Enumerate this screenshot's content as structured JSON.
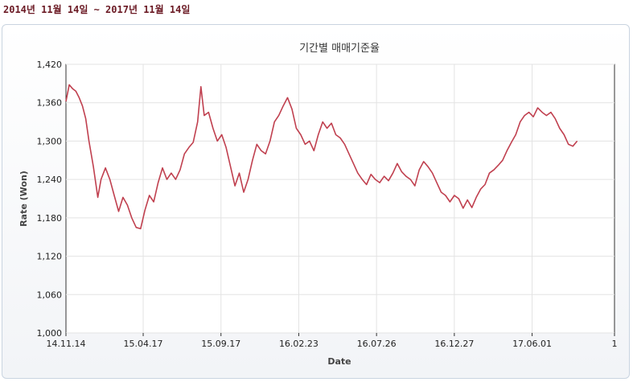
{
  "header": {
    "range_text": "2014년 11월 14일 ~ 2017년 11월 14일"
  },
  "chart_data": {
    "type": "line",
    "title": "기간별 매매기준율",
    "xlabel": "Date",
    "ylabel": "Rate (Won)",
    "ylim": [
      1000,
      1420
    ],
    "yticks": [
      "1,000",
      "1,060",
      "1,120",
      "1,180",
      "1,240",
      "1,300",
      "1,360",
      "1,420"
    ],
    "ytick_values": [
      1000,
      1060,
      1120,
      1180,
      1240,
      1300,
      1360,
      1420
    ],
    "xticks": [
      "14.11.14",
      "15.04.17",
      "15.09.17",
      "16.02.23",
      "16.07.26",
      "16.12.27",
      "17.06.01",
      "1"
    ],
    "xtick_positions": [
      0,
      0.1408,
      0.2826,
      0.4244,
      0.5662,
      0.708,
      0.8498,
      1.0
    ],
    "grid": true,
    "line_color": "#c0404f",
    "series": [
      {
        "name": "",
        "points": [
          [
            0.0,
            1362
          ],
          [
            0.006,
            1388
          ],
          [
            0.012,
            1382
          ],
          [
            0.018,
            1378
          ],
          [
            0.024,
            1368
          ],
          [
            0.03,
            1355
          ],
          [
            0.036,
            1335
          ],
          [
            0.042,
            1300
          ],
          [
            0.05,
            1260
          ],
          [
            0.058,
            1212
          ],
          [
            0.064,
            1240
          ],
          [
            0.072,
            1258
          ],
          [
            0.08,
            1240
          ],
          [
            0.088,
            1215
          ],
          [
            0.096,
            1190
          ],
          [
            0.104,
            1212
          ],
          [
            0.112,
            1200
          ],
          [
            0.12,
            1180
          ],
          [
            0.128,
            1165
          ],
          [
            0.136,
            1163
          ],
          [
            0.144,
            1192
          ],
          [
            0.152,
            1215
          ],
          [
            0.16,
            1205
          ],
          [
            0.168,
            1235
          ],
          [
            0.176,
            1258
          ],
          [
            0.184,
            1240
          ],
          [
            0.192,
            1250
          ],
          [
            0.2,
            1240
          ],
          [
            0.208,
            1255
          ],
          [
            0.216,
            1280
          ],
          [
            0.224,
            1290
          ],
          [
            0.232,
            1298
          ],
          [
            0.24,
            1330
          ],
          [
            0.246,
            1385
          ],
          [
            0.252,
            1340
          ],
          [
            0.26,
            1345
          ],
          [
            0.268,
            1320
          ],
          [
            0.276,
            1300
          ],
          [
            0.284,
            1310
          ],
          [
            0.292,
            1290
          ],
          [
            0.3,
            1260
          ],
          [
            0.308,
            1230
          ],
          [
            0.316,
            1250
          ],
          [
            0.324,
            1220
          ],
          [
            0.332,
            1240
          ],
          [
            0.34,
            1270
          ],
          [
            0.348,
            1295
          ],
          [
            0.356,
            1285
          ],
          [
            0.364,
            1280
          ],
          [
            0.372,
            1300
          ],
          [
            0.38,
            1330
          ],
          [
            0.388,
            1340
          ],
          [
            0.396,
            1355
          ],
          [
            0.404,
            1368
          ],
          [
            0.412,
            1350
          ],
          [
            0.42,
            1320
          ],
          [
            0.428,
            1310
          ],
          [
            0.436,
            1295
          ],
          [
            0.444,
            1300
          ],
          [
            0.452,
            1285
          ],
          [
            0.46,
            1310
          ],
          [
            0.468,
            1330
          ],
          [
            0.476,
            1320
          ],
          [
            0.484,
            1328
          ],
          [
            0.492,
            1310
          ],
          [
            0.5,
            1305
          ],
          [
            0.508,
            1295
          ],
          [
            0.516,
            1280
          ],
          [
            0.524,
            1265
          ],
          [
            0.532,
            1250
          ],
          [
            0.54,
            1240
          ],
          [
            0.548,
            1232
          ],
          [
            0.556,
            1248
          ],
          [
            0.564,
            1240
          ],
          [
            0.572,
            1235
          ],
          [
            0.58,
            1245
          ],
          [
            0.588,
            1238
          ],
          [
            0.596,
            1250
          ],
          [
            0.604,
            1265
          ],
          [
            0.612,
            1252
          ],
          [
            0.62,
            1245
          ],
          [
            0.628,
            1240
          ],
          [
            0.636,
            1230
          ],
          [
            0.644,
            1255
          ],
          [
            0.652,
            1268
          ],
          [
            0.66,
            1260
          ],
          [
            0.668,
            1250
          ],
          [
            0.676,
            1235
          ],
          [
            0.684,
            1220
          ],
          [
            0.692,
            1215
          ],
          [
            0.7,
            1205
          ],
          [
            0.708,
            1215
          ],
          [
            0.716,
            1210
          ],
          [
            0.724,
            1195
          ],
          [
            0.732,
            1208
          ],
          [
            0.74,
            1196
          ],
          [
            0.748,
            1212
          ],
          [
            0.756,
            1225
          ],
          [
            0.764,
            1232
          ],
          [
            0.772,
            1250
          ],
          [
            0.78,
            1255
          ],
          [
            0.788,
            1262
          ],
          [
            0.796,
            1270
          ],
          [
            0.804,
            1285
          ],
          [
            0.812,
            1298
          ],
          [
            0.82,
            1310
          ],
          [
            0.828,
            1330
          ],
          [
            0.836,
            1340
          ],
          [
            0.844,
            1345
          ],
          [
            0.852,
            1338
          ],
          [
            0.86,
            1352
          ],
          [
            0.868,
            1345
          ],
          [
            0.876,
            1340
          ],
          [
            0.884,
            1345
          ],
          [
            0.892,
            1335
          ],
          [
            0.9,
            1320
          ],
          [
            0.908,
            1310
          ],
          [
            0.916,
            1295
          ],
          [
            0.924,
            1292
          ],
          [
            0.932,
            1300
          ]
        ]
      }
    ]
  }
}
